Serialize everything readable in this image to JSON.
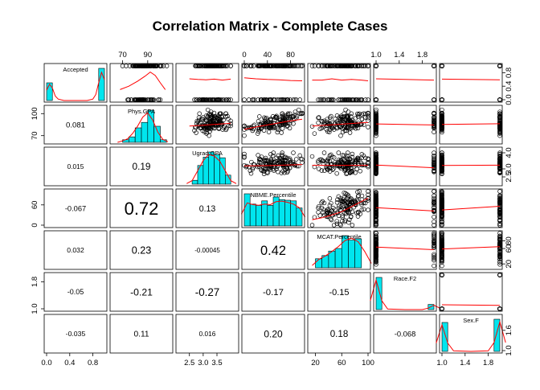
{
  "chart_data": {
    "type": "scatter",
    "title": "Correlation Matrix - Complete Cases",
    "variables": [
      {
        "name": "Accepted",
        "range": [
          0,
          1
        ]
      },
      {
        "name": "Phys.GPA",
        "range": [
          62,
          108
        ]
      },
      {
        "name": "Ugrad.GPA",
        "range": [
          2.1,
          4.2
        ]
      },
      {
        "name": "NBME.Percentile",
        "range": [
          0,
          100
        ]
      },
      {
        "name": "MCAT.Percentile",
        "range": [
          12,
          100
        ]
      },
      {
        "name": "Race.F2",
        "range": [
          1,
          2
        ]
      },
      {
        "name": "Sex.F",
        "range": [
          1,
          2
        ]
      }
    ],
    "correlations": [
      {
        "row": 1,
        "col": 0,
        "label": "0.081",
        "value": 0.081
      },
      {
        "row": 2,
        "col": 0,
        "label": "0.015",
        "value": 0.015
      },
      {
        "row": 2,
        "col": 1,
        "label": "0.19",
        "value": 0.19
      },
      {
        "row": 3,
        "col": 0,
        "label": "-0.067",
        "value": -0.067
      },
      {
        "row": 3,
        "col": 1,
        "label": "0.72",
        "value": 0.72
      },
      {
        "row": 3,
        "col": 2,
        "label": "0.13",
        "value": 0.13
      },
      {
        "row": 4,
        "col": 0,
        "label": "0.032",
        "value": 0.032
      },
      {
        "row": 4,
        "col": 1,
        "label": "0.23",
        "value": 0.23
      },
      {
        "row": 4,
        "col": 2,
        "label": "-0.00045",
        "value": -0.00045
      },
      {
        "row": 4,
        "col": 3,
        "label": "0.42",
        "value": 0.42
      },
      {
        "row": 5,
        "col": 0,
        "label": "-0.05",
        "value": -0.05
      },
      {
        "row": 5,
        "col": 1,
        "label": "-0.21",
        "value": -0.21
      },
      {
        "row": 5,
        "col": 2,
        "label": "-0.27",
        "value": -0.27
      },
      {
        "row": 5,
        "col": 3,
        "label": "-0.17",
        "value": -0.17
      },
      {
        "row": 5,
        "col": 4,
        "label": "-0.15",
        "value": -0.15
      },
      {
        "row": 6,
        "col": 0,
        "label": "-0.035",
        "value": -0.035
      },
      {
        "row": 6,
        "col": 1,
        "label": "0.11",
        "value": 0.11
      },
      {
        "row": 6,
        "col": 2,
        "label": "0.016",
        "value": 0.016
      },
      {
        "row": 6,
        "col": 3,
        "label": "0.20",
        "value": 0.2
      },
      {
        "row": 6,
        "col": 4,
        "label": "0.18",
        "value": 0.18
      },
      {
        "row": 6,
        "col": 5,
        "label": "-0.068",
        "value": -0.068
      }
    ],
    "histograms": [
      {
        "var": 0,
        "bin_edges": [
          0,
          0.1,
          0.2,
          0.3,
          0.4,
          0.5,
          0.6,
          0.7,
          0.8,
          0.9,
          1.0
        ],
        "fractions": [
          0.55,
          0,
          0,
          0,
          0,
          0,
          0,
          0,
          0,
          1.0
        ]
      },
      {
        "var": 1,
        "bin_edges": [
          70,
          75,
          80,
          85,
          90,
          95,
          100,
          105
        ],
        "fractions": [
          0.08,
          0.17,
          0.45,
          0.62,
          1.0,
          0.5,
          0.08
        ]
      },
      {
        "var": 2,
        "bin_edges": [
          2.6,
          2.8,
          3.0,
          3.2,
          3.4,
          3.6,
          3.8,
          4.0
        ],
        "fractions": [
          0.12,
          0.58,
          0.84,
          1.0,
          0.92,
          0.82,
          0.28
        ]
      },
      {
        "var": 3,
        "bin_edges": [
          0,
          10,
          20,
          30,
          40,
          50,
          60,
          70,
          80,
          90,
          100
        ],
        "fractions": [
          1.0,
          0.68,
          0.64,
          0.78,
          0.64,
          0.9,
          0.82,
          0.8,
          0.78,
          0.56
        ]
      },
      {
        "var": 4,
        "bin_edges": [
          20,
          30,
          40,
          50,
          60,
          70,
          80,
          90
        ],
        "fractions": [
          0.28,
          0.38,
          0.52,
          0.6,
          1.0,
          0.86,
          0.9
        ]
      },
      {
        "var": 5,
        "bin_edges": [
          1,
          1.1,
          1.2,
          1.3,
          1.4,
          1.5,
          1.6,
          1.7,
          1.8,
          1.9,
          2.0
        ],
        "fractions": [
          1.0,
          0,
          0,
          0,
          0,
          0,
          0,
          0,
          0,
          0.16
        ]
      },
      {
        "var": 6,
        "bin_edges": [
          1,
          1.1,
          1.2,
          1.3,
          1.4,
          1.5,
          1.6,
          1.7,
          1.8,
          1.9,
          2.0
        ],
        "fractions": [
          0.9,
          0,
          0,
          0,
          0,
          0,
          0,
          0,
          0,
          1.0
        ]
      }
    ],
    "density_curves": [
      {
        "var": 0,
        "x": [
          0.0,
          0.05,
          0.1,
          0.15,
          0.2,
          0.3,
          0.5,
          0.7,
          0.8,
          0.85,
          0.9,
          0.95,
          1.0
        ],
        "y": [
          0.35,
          0.55,
          0.42,
          0.15,
          0.05,
          0.0,
          0.0,
          0.0,
          0.05,
          0.2,
          0.6,
          0.95,
          0.7
        ]
      },
      {
        "var": 1,
        "x": [
          66,
          70,
          74,
          78,
          82,
          86,
          90,
          94,
          98,
          102,
          106
        ],
        "y": [
          0.0,
          0.05,
          0.12,
          0.3,
          0.55,
          0.85,
          1.0,
          0.75,
          0.35,
          0.1,
          0.02
        ]
      },
      {
        "var": 2,
        "x": [
          2.4,
          2.6,
          2.8,
          3.0,
          3.2,
          3.4,
          3.6,
          3.8,
          4.0,
          4.2
        ],
        "y": [
          0.02,
          0.12,
          0.45,
          0.8,
          1.0,
          0.95,
          0.78,
          0.45,
          0.12,
          0.02
        ]
      },
      {
        "var": 3,
        "x": [
          -5,
          5,
          15,
          25,
          35,
          45,
          55,
          65,
          75,
          85,
          95,
          105
        ],
        "y": [
          0.4,
          0.78,
          0.72,
          0.7,
          0.74,
          0.72,
          0.82,
          0.84,
          0.8,
          0.74,
          0.62,
          0.3
        ]
      },
      {
        "var": 4,
        "x": [
          15,
          25,
          35,
          45,
          55,
          65,
          75,
          85,
          95,
          105
        ],
        "y": [
          0.08,
          0.28,
          0.4,
          0.55,
          0.72,
          0.92,
          1.0,
          0.88,
          0.55,
          0.15
        ]
      },
      {
        "var": 5,
        "x": [
          0.9,
          1.0,
          1.1,
          1.2,
          1.5,
          1.8,
          1.9,
          2.0,
          2.1
        ],
        "y": [
          0.3,
          1.0,
          0.3,
          0.02,
          0.0,
          0.0,
          0.05,
          0.15,
          0.05
        ]
      },
      {
        "var": 6,
        "x": [
          0.9,
          1.0,
          1.1,
          1.2,
          1.5,
          1.8,
          1.9,
          2.0,
          2.1
        ],
        "y": [
          0.28,
          0.9,
          0.28,
          0.02,
          0.0,
          0.02,
          0.3,
          1.0,
          0.3
        ]
      }
    ],
    "smoother_trends": [
      {
        "row": 0,
        "col": 1,
        "x": [
          68,
          75,
          82,
          88,
          92,
          96,
          100,
          104
        ],
        "y": [
          0.3,
          0.4,
          0.55,
          0.7,
          0.82,
          0.72,
          0.5,
          0.3
        ]
      },
      {
        "row": 0,
        "col": 2,
        "x": [
          2.5,
          2.8,
          3.1,
          3.4,
          3.7,
          4.0
        ],
        "y": [
          0.62,
          0.6,
          0.59,
          0.61,
          0.58,
          0.61
        ]
      },
      {
        "row": 0,
        "col": 3,
        "x": [
          0,
          20,
          40,
          60,
          80,
          100
        ],
        "y": [
          0.65,
          0.62,
          0.6,
          0.59,
          0.57,
          0.56
        ]
      },
      {
        "row": 0,
        "col": 4,
        "x": [
          15,
          30,
          45,
          60,
          75,
          90,
          100
        ],
        "y": [
          0.58,
          0.58,
          0.62,
          0.58,
          0.6,
          0.58,
          0.56
        ]
      },
      {
        "row": 0,
        "col": 5,
        "x": [
          1,
          2
        ],
        "y": [
          0.62,
          0.58
        ]
      },
      {
        "row": 0,
        "col": 6,
        "x": [
          1,
          2
        ],
        "y": [
          0.61,
          0.59
        ]
      },
      {
        "row": 1,
        "col": 2,
        "x": [
          2.5,
          3.0,
          3.5,
          4.0
        ],
        "y": [
          83.0,
          84.2,
          85.5,
          87.0
        ]
      },
      {
        "row": 1,
        "col": 3,
        "x": [
          0,
          25,
          50,
          75,
          100
        ],
        "y": [
          78.5,
          82.5,
          86.0,
          89.5,
          92.5
        ]
      },
      {
        "row": 1,
        "col": 4,
        "x": [
          15,
          40,
          65,
          90,
          100
        ],
        "y": [
          83.0,
          84.5,
          86.0,
          87.5,
          88.0
        ]
      },
      {
        "row": 1,
        "col": 5,
        "x": [
          1,
          2
        ],
        "y": [
          86.0,
          84.6
        ]
      },
      {
        "row": 1,
        "col": 6,
        "x": [
          1,
          2
        ],
        "y": [
          85.3,
          86.2
        ]
      },
      {
        "row": 2,
        "col": 1,
        "x": [
          68,
          80,
          92,
          104
        ],
        "y": [
          3.13,
          3.18,
          3.23,
          3.28
        ]
      },
      {
        "row": 2,
        "col": 3,
        "x": [
          0,
          50,
          100
        ],
        "y": [
          3.18,
          3.21,
          3.27
        ]
      },
      {
        "row": 2,
        "col": 4,
        "x": [
          15,
          57,
          100
        ],
        "y": [
          3.22,
          3.22,
          3.22
        ]
      },
      {
        "row": 2,
        "col": 5,
        "x": [
          1,
          2
        ],
        "y": [
          3.24,
          3.07
        ]
      },
      {
        "row": 2,
        "col": 6,
        "x": [
          1,
          2
        ],
        "y": [
          3.21,
          3.23
        ]
      },
      {
        "row": 3,
        "col": 1,
        "x": [
          66,
          75,
          84,
          93,
          102,
          106
        ],
        "y": [
          10,
          22,
          38,
          55,
          72,
          82
        ]
      },
      {
        "row": 3,
        "col": 2,
        "x": [
          2.5,
          3.0,
          3.5,
          4.0
        ],
        "y": [
          44,
          49,
          54,
          59
        ]
      },
      {
        "row": 3,
        "col": 4,
        "x": [
          15,
          30,
          45,
          60,
          75,
          90,
          100
        ],
        "y": [
          16,
          22,
          30,
          40,
          55,
          70,
          80
        ]
      },
      {
        "row": 3,
        "col": 5,
        "x": [
          1,
          2
        ],
        "y": [
          52,
          42
        ]
      },
      {
        "row": 3,
        "col": 6,
        "x": [
          1,
          2
        ],
        "y": [
          45,
          56
        ]
      },
      {
        "row": 4,
        "col": 1,
        "x": [
          68,
          80,
          92,
          104
        ],
        "y": [
          55,
          60,
          66,
          72
        ]
      },
      {
        "row": 4,
        "col": 2,
        "x": [
          2.5,
          3.2,
          4.0
        ],
        "y": [
          62,
          62,
          62
        ]
      },
      {
        "row": 4,
        "col": 3,
        "x": [
          0,
          25,
          50,
          75,
          100
        ],
        "y": [
          50,
          56,
          62,
          69,
          76
        ]
      },
      {
        "row": 4,
        "col": 5,
        "x": [
          1,
          2
        ],
        "y": [
          64,
          57
        ]
      },
      {
        "row": 4,
        "col": 6,
        "x": [
          1,
          2
        ],
        "y": [
          59,
          65
        ]
      },
      {
        "row": 5,
        "col": 6,
        "x": [
          1,
          2
        ],
        "y": [
          1.12,
          1.1
        ]
      }
    ],
    "axis_ticks": [
      {
        "side": "top",
        "col": 1,
        "ticks": [
          {
            "value": 70,
            "label": "70"
          },
          {
            "value": 90,
            "label": "90"
          }
        ]
      },
      {
        "side": "top",
        "col": 3,
        "ticks": [
          {
            "value": 0,
            "label": "0"
          },
          {
            "value": 40,
            "label": "40"
          },
          {
            "value": 80,
            "label": "80"
          }
        ]
      },
      {
        "side": "top",
        "col": 5,
        "ticks": [
          {
            "value": 1.0,
            "label": "1.0"
          },
          {
            "value": 1.4,
            "label": "1.4"
          },
          {
            "value": 1.8,
            "label": "1.8"
          }
        ]
      },
      {
        "side": "bottom",
        "col": 0,
        "ticks": [
          {
            "value": 0.0,
            "label": "0.0"
          },
          {
            "value": 0.4,
            "label": "0.4"
          },
          {
            "value": 0.8,
            "label": "0.8"
          }
        ]
      },
      {
        "side": "bottom",
        "col": 2,
        "ticks": [
          {
            "value": 2.5,
            "label": "2.5"
          },
          {
            "value": 3.0,
            "label": "3.0"
          },
          {
            "value": 3.5,
            "label": "3.5"
          }
        ]
      },
      {
        "side": "bottom",
        "col": 4,
        "ticks": [
          {
            "value": 20,
            "label": "20"
          },
          {
            "value": 60,
            "label": "60"
          },
          {
            "value": 100,
            "label": "100"
          }
        ]
      },
      {
        "side": "bottom",
        "col": 6,
        "ticks": [
          {
            "value": 1.0,
            "label": "1.0"
          },
          {
            "value": 1.4,
            "label": "1.4"
          },
          {
            "value": 1.8,
            "label": "1.8"
          }
        ]
      },
      {
        "side": "left",
        "row": 1,
        "ticks": [
          {
            "value": 70,
            "label": "70"
          },
          {
            "value": 100,
            "label": "100"
          }
        ]
      },
      {
        "side": "left",
        "row": 3,
        "ticks": [
          {
            "value": 0,
            "label": "0"
          },
          {
            "value": 60,
            "label": "60"
          }
        ]
      },
      {
        "side": "left",
        "row": 5,
        "ticks": [
          {
            "value": 1.0,
            "label": "1.0"
          },
          {
            "value": 1.8,
            "label": "1.8"
          }
        ]
      },
      {
        "side": "right",
        "row": 0,
        "ticks": [
          {
            "value": 0.0,
            "label": "0.0"
          },
          {
            "value": 0.4,
            "label": "0.4"
          },
          {
            "value": 0.8,
            "label": "0.8"
          }
        ]
      },
      {
        "side": "right",
        "row": 2,
        "ticks": [
          {
            "value": 2.5,
            "label": "2.5"
          },
          {
            "value": 3.0,
            "label": "3.0"
          },
          {
            "value": 4.0,
            "label": "4.0"
          }
        ]
      },
      {
        "side": "right",
        "row": 4,
        "ticks": [
          {
            "value": 20,
            "label": "20"
          },
          {
            "value": 60,
            "label": "60"
          },
          {
            "value": 80,
            "label": "80"
          }
        ]
      },
      {
        "side": "right",
        "row": 6,
        "ticks": [
          {
            "value": 1.0,
            "label": "1.0"
          },
          {
            "value": 1.6,
            "label": "1.6"
          }
        ]
      }
    ],
    "grid": false,
    "colors": {
      "histogram_fill": "#00e5ee",
      "smoother": "#ff0000",
      "points": "#000000",
      "frame": "#000000"
    }
  }
}
